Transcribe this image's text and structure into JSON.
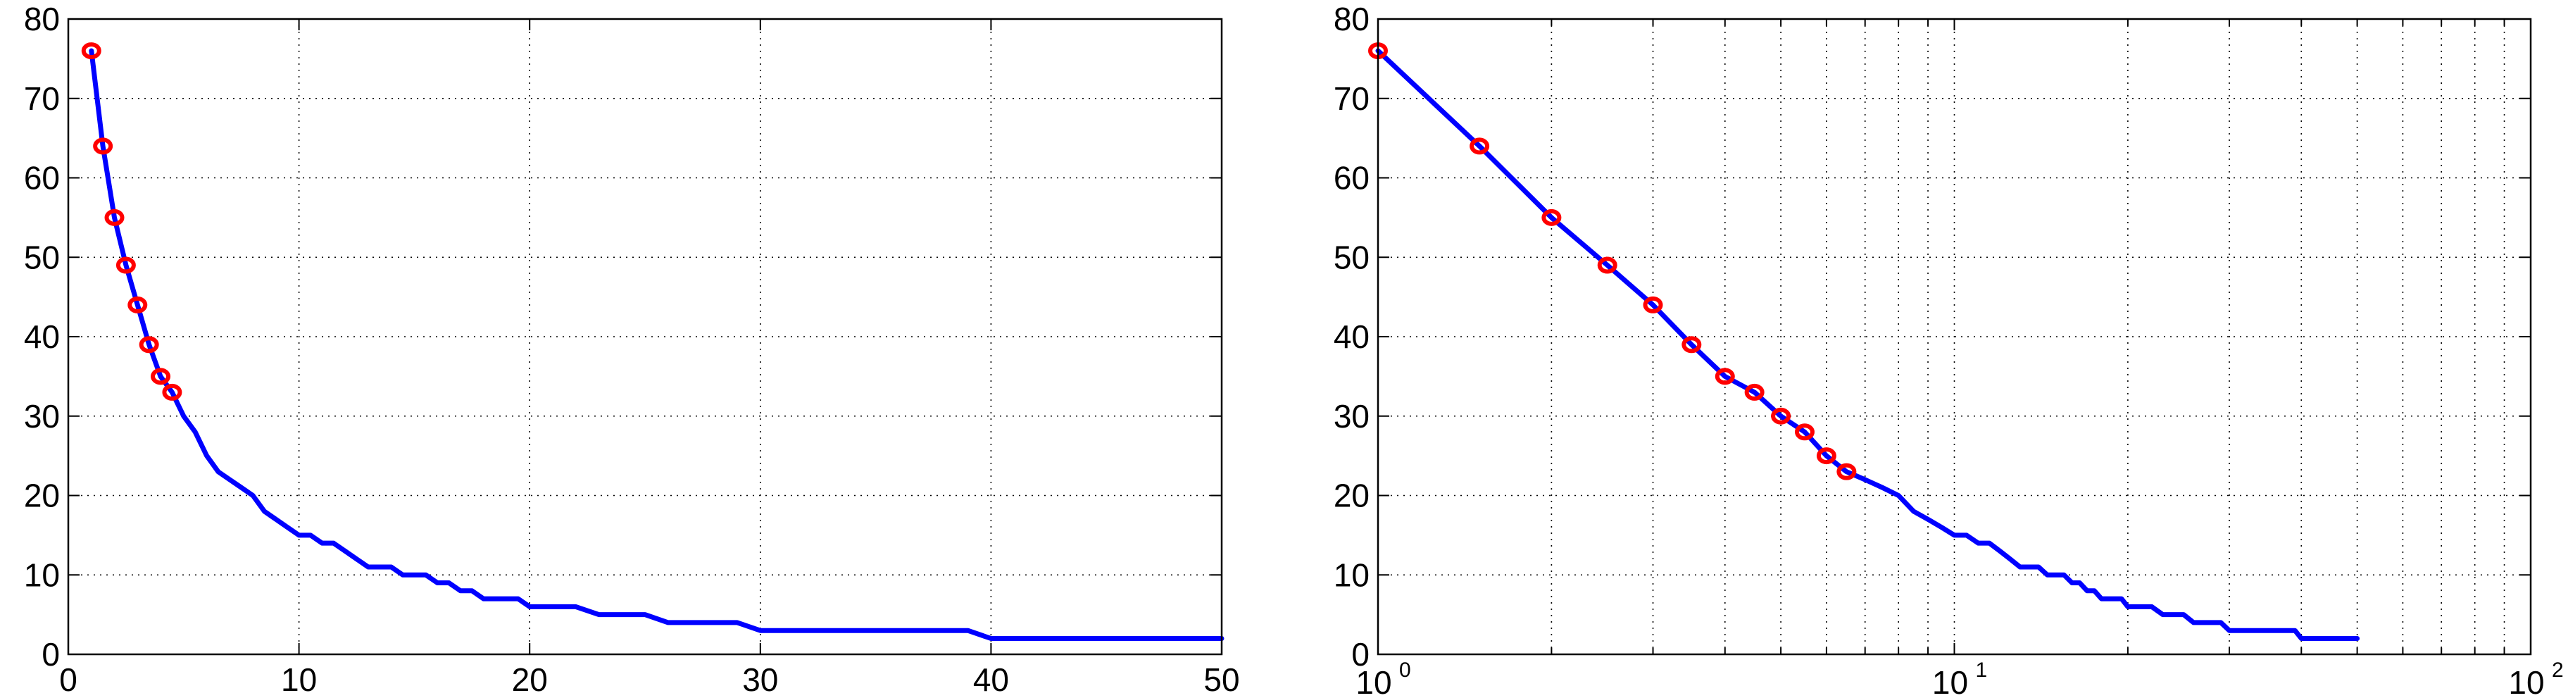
{
  "chart_data": [
    {
      "type": "line",
      "title": "",
      "xlabel": "",
      "ylabel": "",
      "xscale": "linear",
      "yscale": "linear",
      "xlim": [
        0,
        50
      ],
      "ylim": [
        0,
        80
      ],
      "xticks": [
        0,
        10,
        20,
        30,
        40,
        50
      ],
      "xtick_labels": [
        "0",
        "10",
        "20",
        "30",
        "40",
        "50"
      ],
      "yticks": [
        0,
        10,
        20,
        30,
        40,
        50,
        60,
        70,
        80
      ],
      "ytick_labels": [
        "0",
        "10",
        "20",
        "30",
        "40",
        "50",
        "60",
        "70",
        "80"
      ],
      "grid": true,
      "series": [
        {
          "style": "line",
          "color": "#0000ff",
          "x": [
            1,
            1.5,
            2,
            2.5,
            3,
            3.5,
            4,
            4.5,
            5,
            5.5,
            6,
            6.5,
            7,
            7.5,
            8,
            8.5,
            9,
            9.5,
            10,
            10.5,
            11,
            11.5,
            12,
            12.5,
            13,
            13.5,
            14,
            14.5,
            15,
            15.5,
            16,
            16.5,
            17,
            17.5,
            18,
            18.5,
            19,
            19.5,
            20,
            21,
            22,
            23,
            24,
            25,
            26,
            27,
            28,
            29,
            30,
            31,
            32,
            33,
            34,
            35,
            36,
            37,
            38,
            39,
            40,
            41,
            42,
            43,
            44,
            45,
            46,
            47,
            48,
            49,
            50
          ],
          "y": [
            76,
            64,
            55,
            49,
            44,
            39,
            35,
            33,
            30,
            28,
            25,
            23,
            22,
            21,
            20,
            18,
            17,
            16,
            15,
            15,
            14,
            14,
            13,
            12,
            11,
            11,
            11,
            10,
            10,
            10,
            9,
            9,
            8,
            8,
            7,
            7,
            7,
            7,
            6,
            6,
            6,
            5,
            5,
            5,
            4,
            4,
            4,
            4,
            3,
            3,
            3,
            3,
            3,
            3,
            3,
            3,
            3,
            3,
            2,
            2,
            2,
            2,
            2,
            2,
            2,
            2,
            2,
            2,
            2
          ]
        },
        {
          "style": "markers",
          "marker": "circle",
          "color": "#ff0000",
          "x": [
            1,
            1.5,
            2,
            2.5,
            3,
            3.5,
            4,
            4.5
          ],
          "y": [
            76,
            64,
            55,
            49,
            44,
            39,
            35,
            33
          ]
        }
      ]
    },
    {
      "type": "line",
      "title": "",
      "xlabel": "",
      "ylabel": "",
      "xscale": "log",
      "yscale": "linear",
      "xlim": [
        1,
        100
      ],
      "ylim": [
        0,
        80
      ],
      "xticks": [
        1,
        10,
        100
      ],
      "xtick_labels": [
        {
          "base": "10",
          "exp": "0"
        },
        {
          "base": "10",
          "exp": "1"
        },
        {
          "base": "10",
          "exp": "2"
        }
      ],
      "yticks": [
        0,
        10,
        20,
        30,
        40,
        50,
        60,
        70,
        80
      ],
      "ytick_labels": [
        "0",
        "10",
        "20",
        "30",
        "40",
        "50",
        "60",
        "70",
        "80"
      ],
      "grid": true,
      "series": [
        {
          "style": "line",
          "color": "#0000ff",
          "x": [
            1,
            1.5,
            2,
            2.5,
            3,
            3.5,
            4,
            4.5,
            5,
            5.5,
            6,
            6.5,
            7,
            7.5,
            8,
            8.5,
            9,
            9.5,
            10,
            10.5,
            11,
            11.5,
            12,
            12.5,
            13,
            13.5,
            14,
            14.5,
            15,
            15.5,
            16,
            16.5,
            17,
            17.5,
            18,
            18.5,
            19,
            19.5,
            20,
            21,
            22,
            23,
            24,
            25,
            26,
            27,
            28,
            29,
            30,
            31,
            32,
            33,
            34,
            35,
            36,
            37,
            38,
            39,
            40,
            41,
            42,
            43,
            44,
            45,
            46,
            47,
            48,
            49,
            50
          ],
          "y": [
            76,
            64,
            55,
            49,
            44,
            39,
            35,
            33,
            30,
            28,
            25,
            23,
            22,
            21,
            20,
            18,
            17,
            16,
            15,
            15,
            14,
            14,
            13,
            12,
            11,
            11,
            11,
            10,
            10,
            10,
            9,
            9,
            8,
            8,
            7,
            7,
            7,
            7,
            6,
            6,
            6,
            5,
            5,
            5,
            4,
            4,
            4,
            4,
            3,
            3,
            3,
            3,
            3,
            3,
            3,
            3,
            3,
            3,
            2,
            2,
            2,
            2,
            2,
            2,
            2,
            2,
            2,
            2,
            2
          ]
        },
        {
          "style": "markers",
          "marker": "circle",
          "color": "#ff0000",
          "x": [
            1,
            1.5,
            2,
            2.5,
            3,
            3.5,
            4,
            4.5,
            5,
            5.5,
            6,
            6.5
          ],
          "y": [
            76,
            64,
            55,
            49,
            44,
            39,
            35,
            33,
            30,
            28,
            25,
            23
          ]
        }
      ]
    }
  ]
}
